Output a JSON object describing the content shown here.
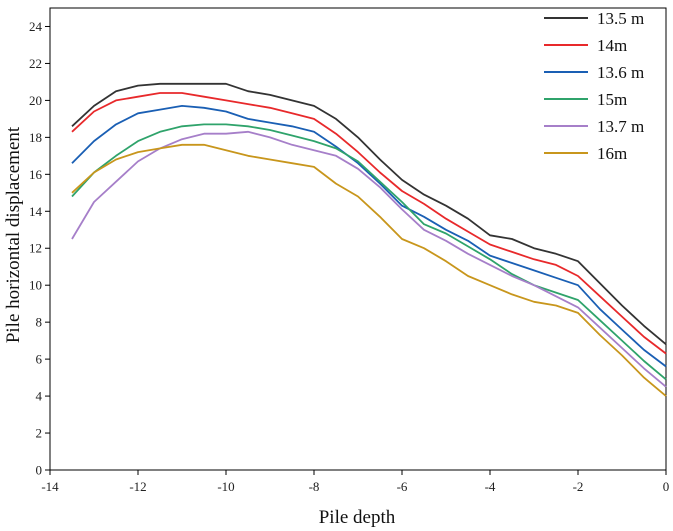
{
  "chart_data": {
    "type": "line",
    "title": "",
    "xlabel": "Pile depth",
    "ylabel": "Pile horizontal displacement",
    "xlim": [
      -14,
      0
    ],
    "ylim": [
      0,
      25
    ],
    "xticks": [
      -14,
      -12,
      -10,
      -8,
      -6,
      -4,
      -2,
      0
    ],
    "yticks": [
      0,
      2,
      4,
      6,
      8,
      10,
      12,
      14,
      16,
      18,
      20,
      22,
      24
    ],
    "grid": false,
    "legend_position": "top-right",
    "series": [
      {
        "name": "13.5 m",
        "color": "#333333",
        "x": [
          -13.5,
          -13,
          -12.5,
          -12,
          -11.5,
          -11,
          -10.5,
          -10,
          -9.5,
          -9,
          -8.5,
          -8,
          -7.5,
          -7,
          -6.5,
          -6,
          -5.5,
          -5,
          -4.5,
          -4,
          -3.5,
          -3,
          -2.5,
          -2,
          -1.5,
          -1,
          -0.5,
          0
        ],
        "y": [
          18.6,
          19.7,
          20.5,
          20.8,
          20.9,
          20.9,
          20.9,
          20.9,
          20.5,
          20.3,
          20.0,
          19.7,
          19.0,
          18.0,
          16.8,
          15.7,
          14.9,
          14.3,
          13.6,
          12.7,
          12.5,
          12.0,
          11.7,
          11.3,
          10.1,
          8.9,
          7.8,
          6.8
        ]
      },
      {
        "name": "14m",
        "color": "#e8292b",
        "x": [
          -13.5,
          -13,
          -12.5,
          -12,
          -11.5,
          -11,
          -10.5,
          -10,
          -9.5,
          -9,
          -8.5,
          -8,
          -7.5,
          -7,
          -6.5,
          -6,
          -5.5,
          -5,
          -4.5,
          -4,
          -3.5,
          -3,
          -2.5,
          -2,
          -1.5,
          -1,
          -0.5,
          0
        ],
        "y": [
          18.3,
          19.4,
          20.0,
          20.2,
          20.4,
          20.4,
          20.2,
          20.0,
          19.8,
          19.6,
          19.3,
          19.0,
          18.2,
          17.2,
          16.1,
          15.1,
          14.4,
          13.6,
          12.9,
          12.2,
          11.8,
          11.4,
          11.1,
          10.5,
          9.4,
          8.3,
          7.2,
          6.3
        ]
      },
      {
        "name": "13.6 m",
        "color": "#1a5fb4",
        "x": [
          -13.5,
          -13,
          -12.5,
          -12,
          -11.5,
          -11,
          -10.5,
          -10,
          -9.5,
          -9,
          -8.5,
          -8,
          -7.5,
          -7,
          -6.5,
          -6,
          -5.5,
          -5,
          -4.5,
          -4,
          -3.5,
          -3,
          -2.5,
          -2,
          -1.5,
          -1,
          -0.5,
          0
        ],
        "y": [
          16.6,
          17.8,
          18.7,
          19.3,
          19.5,
          19.7,
          19.6,
          19.4,
          19.0,
          18.8,
          18.6,
          18.3,
          17.5,
          16.6,
          15.5,
          14.3,
          13.7,
          13.0,
          12.4,
          11.6,
          11.2,
          10.8,
          10.4,
          10.0,
          8.7,
          7.6,
          6.5,
          5.6
        ]
      },
      {
        "name": "15m",
        "color": "#2fa36b",
        "x": [
          -13.5,
          -13,
          -12.5,
          -12,
          -11.5,
          -11,
          -10.5,
          -10,
          -9.5,
          -9,
          -8.5,
          -8,
          -7.5,
          -7,
          -6.5,
          -6,
          -5.5,
          -5,
          -4.5,
          -4,
          -3.5,
          -3,
          -2.5,
          -2,
          -1.5,
          -1,
          -0.5,
          0
        ],
        "y": [
          14.8,
          16.1,
          17.0,
          17.8,
          18.3,
          18.6,
          18.7,
          18.7,
          18.6,
          18.4,
          18.1,
          17.8,
          17.4,
          16.7,
          15.6,
          14.5,
          13.3,
          12.8,
          12.1,
          11.4,
          10.6,
          10.0,
          9.6,
          9.2,
          8.1,
          7.0,
          5.9,
          4.9
        ]
      },
      {
        "name": "13.7 m",
        "color": "#a67fc9",
        "x": [
          -13.5,
          -13,
          -12.5,
          -12,
          -11.5,
          -11,
          -10.5,
          -10,
          -9.5,
          -9,
          -8.5,
          -8,
          -7.5,
          -7,
          -6.5,
          -6,
          -5.5,
          -5,
          -4.5,
          -4,
          -3.5,
          -3,
          -2.5,
          -2,
          -1.5,
          -1,
          -0.5,
          0
        ],
        "y": [
          12.5,
          14.5,
          15.6,
          16.7,
          17.4,
          17.9,
          18.2,
          18.2,
          18.3,
          18.0,
          17.6,
          17.3,
          17.0,
          16.3,
          15.3,
          14.1,
          13.0,
          12.4,
          11.7,
          11.1,
          10.5,
          10.0,
          9.4,
          8.8,
          7.7,
          6.6,
          5.5,
          4.5
        ]
      },
      {
        "name": "16m",
        "color": "#c8961c",
        "x": [
          -13.5,
          -13,
          -12.5,
          -12,
          -11.5,
          -11,
          -10.5,
          -10,
          -9.5,
          -9,
          -8.5,
          -8,
          -7.5,
          -7,
          -6.5,
          -6,
          -5.5,
          -5,
          -4.5,
          -4,
          -3.5,
          -3,
          -2.5,
          -2,
          -1.5,
          -1,
          -0.5,
          0
        ],
        "y": [
          15.0,
          16.1,
          16.8,
          17.2,
          17.4,
          17.6,
          17.6,
          17.3,
          17.0,
          16.8,
          16.6,
          16.4,
          15.5,
          14.8,
          13.7,
          12.5,
          12.0,
          11.3,
          10.5,
          10.0,
          9.5,
          9.1,
          8.9,
          8.5,
          7.3,
          6.2,
          5.0,
          4.0
        ]
      }
    ]
  }
}
